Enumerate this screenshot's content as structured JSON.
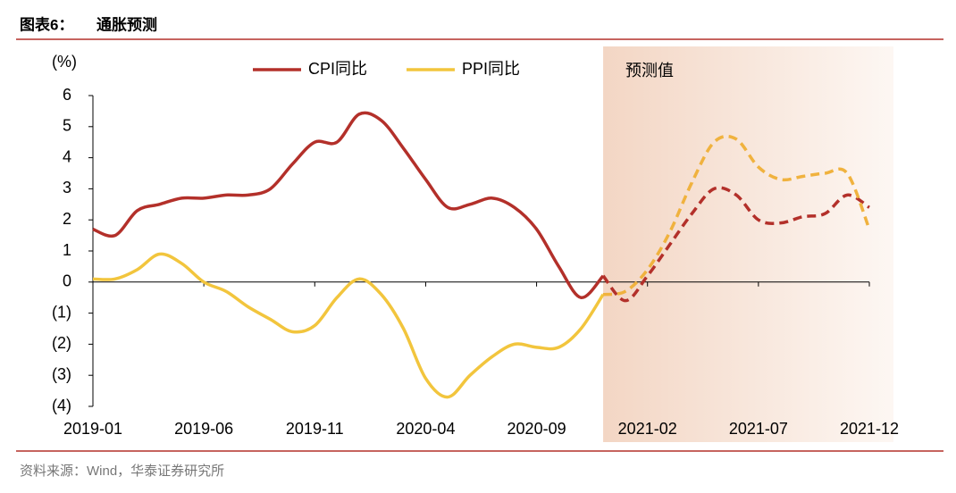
{
  "header": {
    "label": "图表6：",
    "title": "通胀预测"
  },
  "source": "资料来源：Wind，华泰证券研究所",
  "chart_data": {
    "type": "line",
    "y_label": "(%)",
    "forecast_label": "预测值",
    "forecast_from": "2020-12",
    "categories": [
      "2019-01",
      null,
      null,
      null,
      null,
      "2019-06",
      null,
      null,
      null,
      null,
      "2019-11",
      null,
      null,
      null,
      null,
      "2020-04",
      null,
      null,
      null,
      null,
      "2020-09",
      null,
      null,
      null,
      null,
      "2021-02",
      null,
      null,
      null,
      null,
      "2021-07",
      null,
      null,
      null,
      null,
      "2021-12"
    ],
    "months": [
      "2019-01",
      "2019-02",
      "2019-03",
      "2019-04",
      "2019-05",
      "2019-06",
      "2019-07",
      "2019-08",
      "2019-09",
      "2019-10",
      "2019-11",
      "2019-12",
      "2020-01",
      "2020-02",
      "2020-03",
      "2020-04",
      "2020-05",
      "2020-06",
      "2020-07",
      "2020-08",
      "2020-09",
      "2020-10",
      "2020-11",
      "2020-12",
      "2021-01",
      "2021-02",
      "2021-03",
      "2021-04",
      "2021-05",
      "2021-06",
      "2021-07",
      "2021-08",
      "2021-09",
      "2021-10",
      "2021-11",
      "2021-12"
    ],
    "series": [
      {
        "name": "CPI同比",
        "color": "#b3302a",
        "values": [
          1.7,
          1.5,
          2.3,
          2.5,
          2.7,
          2.7,
          2.8,
          2.8,
          3.0,
          3.8,
          4.5,
          4.5,
          5.4,
          5.2,
          4.3,
          3.3,
          2.4,
          2.5,
          2.7,
          2.4,
          1.7,
          0.5,
          -0.5,
          0.2,
          -0.6,
          0.2,
          1.2,
          2.2,
          3.0,
          2.8,
          2.0,
          1.9,
          2.1,
          2.2,
          2.8,
          2.4
        ]
      },
      {
        "name": "PPI同比",
        "color": "#f2c53d",
        "forecast_color": "#f0b23e",
        "values": [
          0.1,
          0.1,
          0.4,
          0.9,
          0.6,
          0.0,
          -0.3,
          -0.8,
          -1.2,
          -1.6,
          -1.4,
          -0.5,
          0.1,
          -0.4,
          -1.5,
          -3.1,
          -3.7,
          -3.0,
          -2.4,
          -2.0,
          -2.1,
          -2.1,
          -1.5,
          -0.4,
          -0.3,
          0.4,
          1.6,
          3.2,
          4.5,
          4.6,
          3.7,
          3.3,
          3.4,
          3.5,
          3.5,
          1.7
        ]
      }
    ],
    "ylim": [
      -4,
      6
    ],
    "yticks": [
      {
        "value": -4,
        "label": "(4)"
      },
      {
        "value": -3,
        "label": "(3)"
      },
      {
        "value": -2,
        "label": "(2)"
      },
      {
        "value": -1,
        "label": "(1)"
      },
      0,
      1,
      2,
      3,
      4,
      5,
      6
    ],
    "legend": "top"
  }
}
